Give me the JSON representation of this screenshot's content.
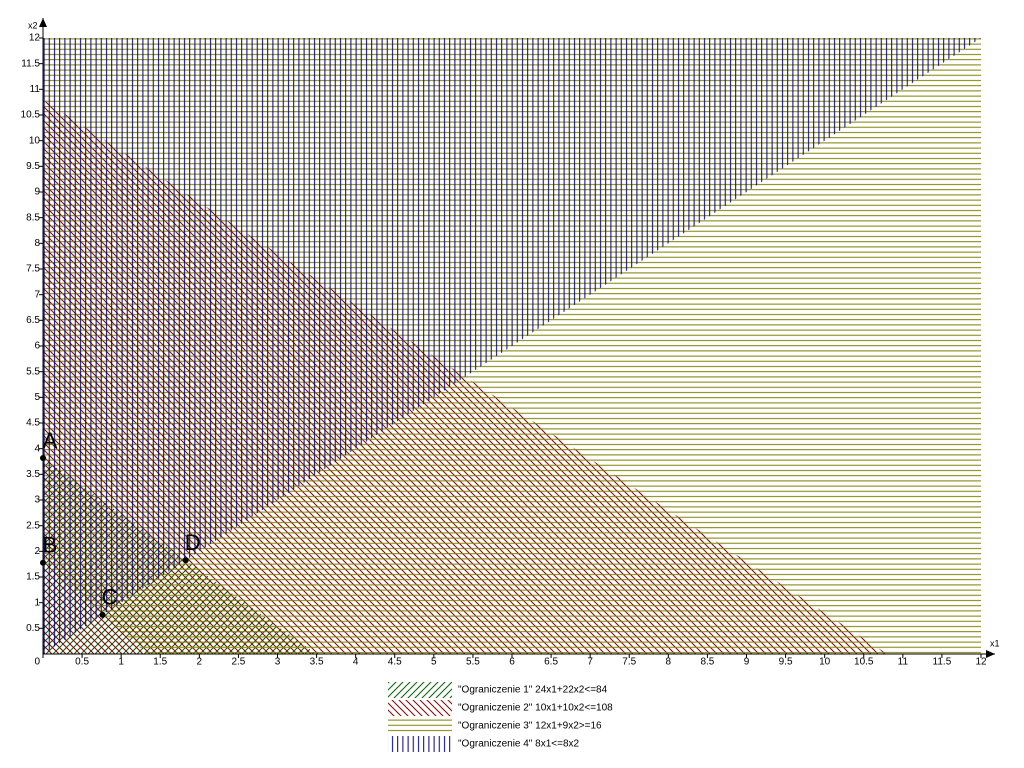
{
  "chart_data": {
    "type": "region",
    "x_label": "x1",
    "y_label": "x2",
    "xlim": [
      0,
      12
    ],
    "ylim": [
      0,
      12
    ],
    "xticks": [
      0,
      0.5,
      1,
      1.5,
      2,
      2.5,
      3,
      3.5,
      4,
      4.5,
      5,
      5.5,
      6,
      6.5,
      7,
      7.5,
      8,
      8.5,
      9,
      9.5,
      10,
      10.5,
      11,
      11.5,
      12
    ],
    "yticks": [
      0.5,
      1,
      1.5,
      2,
      2.5,
      3,
      3.5,
      4,
      4.5,
      5,
      5.5,
      6,
      6.5,
      7,
      7.5,
      8,
      8.5,
      9,
      9.5,
      10,
      10.5,
      11,
      11.5,
      12
    ],
    "constraints": [
      {
        "name": "\"Ograniczenie 1\" 24x1+22x2<=84",
        "coefficients": [
          24,
          22
        ],
        "sense": "<=",
        "rhs": 84,
        "color": "#006400",
        "hatch": "diagonal-up"
      },
      {
        "name": "\"Ograniczenie 2\" 10x1+10x2<=108",
        "coefficients": [
          10,
          10
        ],
        "sense": "<=",
        "rhs": 108,
        "color": "#8b0000",
        "hatch": "diagonal-down"
      },
      {
        "name": "\"Ograniczenie 3\" 12x1+9x2>=16",
        "coefficients": [
          12,
          9
        ],
        "sense": ">=",
        "rhs": 16,
        "color": "#808000",
        "hatch": "horizontal"
      },
      {
        "name": "\"Ograniczenie 4\" 8x1<=8x2",
        "coefficients": [
          8,
          -8
        ],
        "sense": "<=",
        "rhs": 0,
        "color": "#000080",
        "hatch": "vertical"
      }
    ],
    "points": [
      {
        "label": "A",
        "x": 0,
        "y": 3.818
      },
      {
        "label": "B",
        "x": 0,
        "y": 1.778
      },
      {
        "label": "C",
        "x": 0.762,
        "y": 0.762
      },
      {
        "label": "D",
        "x": 1.826,
        "y": 1.826
      }
    ]
  }
}
